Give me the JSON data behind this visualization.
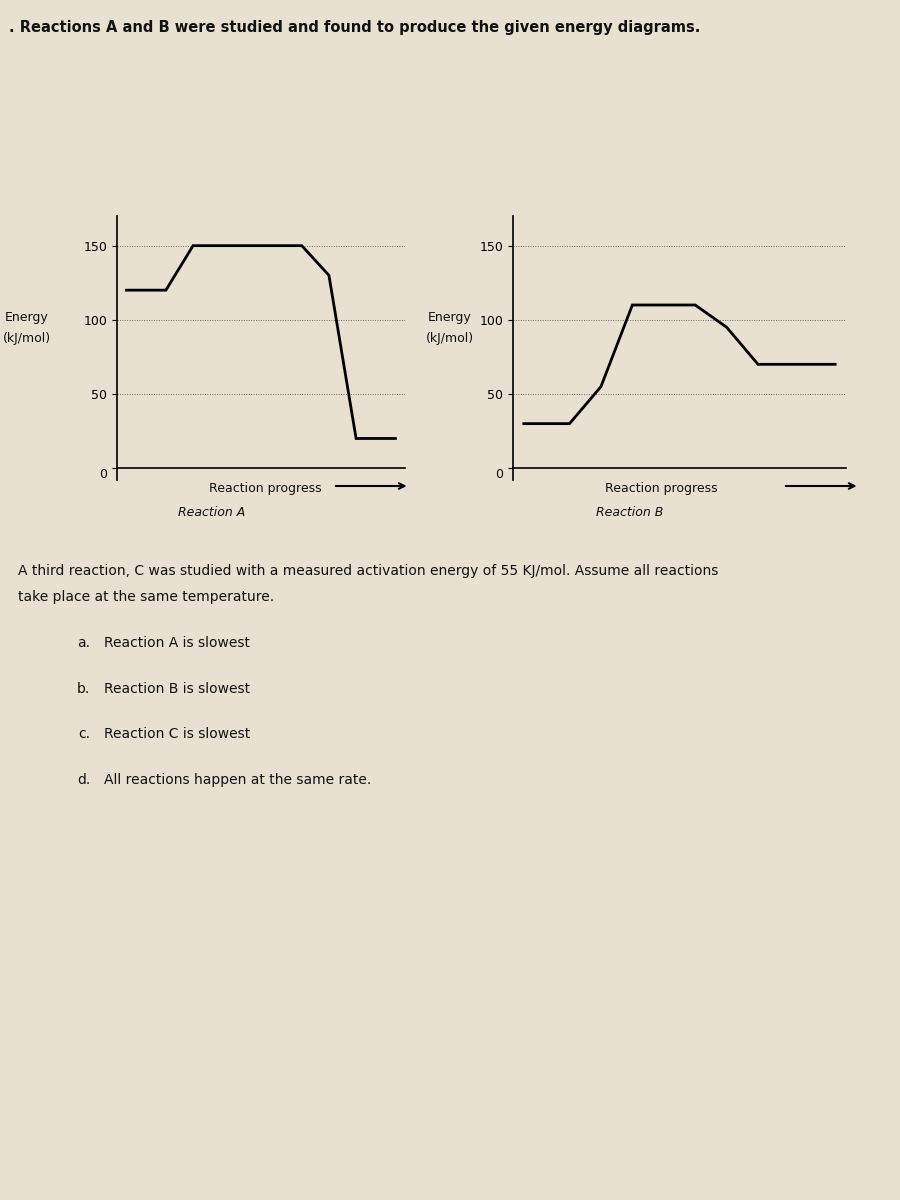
{
  "title": ". Reactions A and B were studied and found to produce the given energy diagrams.",
  "background_color": "#c8bfa8",
  "paper_color": "#e8e0d0",
  "reaction_A": {
    "x": [
      0,
      1.5,
      2.5,
      3.5,
      6.5,
      7.5,
      8.5,
      10
    ],
    "y": [
      120,
      120,
      150,
      150,
      150,
      130,
      20,
      20
    ],
    "ylabel": "Energy\n(kJ/mol)",
    "xlabel": "Reaction progress",
    "label": "Reaction A",
    "yticks": [
      0,
      50,
      100,
      150
    ],
    "ylim": [
      -8,
      170
    ]
  },
  "reaction_B": {
    "x": [
      0,
      1.5,
      2.5,
      3.5,
      5.5,
      6.5,
      7.5,
      8.5,
      10
    ],
    "y": [
      30,
      30,
      55,
      110,
      110,
      95,
      70,
      70,
      70
    ],
    "ylabel": "Energy\n(kJ/mol)",
    "xlabel": "Reaction progress",
    "label": "Reaction B",
    "yticks": [
      0,
      50,
      100,
      150
    ],
    "ylim": [
      -8,
      170
    ]
  },
  "body_text_line1": "A third reaction, C was studied with a measured activation energy of 55 KJ/mol. Assume all reactions",
  "body_text_line2": "take place at the same temperature.",
  "choices": [
    [
      "a.",
      "Reaction A is slowest"
    ],
    [
      "b.",
      "Reaction B is slowest"
    ],
    [
      "c.",
      "Reaction C is slowest"
    ],
    [
      "d.",
      "All reactions happen at the same rate."
    ]
  ],
  "line_color": "#000000",
  "dotted_color": "#666666",
  "text_color": "#111111",
  "axis_color": "#000000"
}
